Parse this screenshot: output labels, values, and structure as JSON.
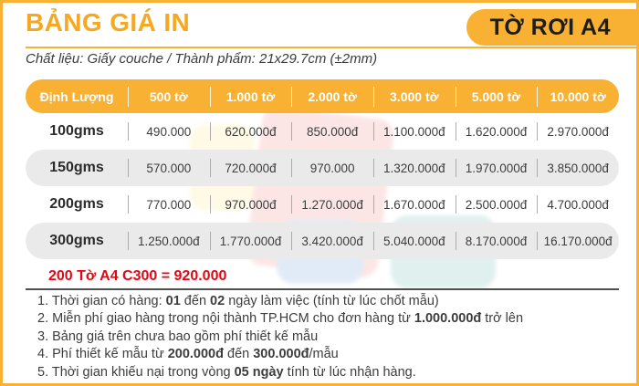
{
  "header": {
    "title": "BẢNG GIÁ IN",
    "badge": "TỜ RƠI A4",
    "subtitle": "Chất liệu: Giấy couche / Thành phẩm: 21x29.7cm (±2mm)"
  },
  "colors": {
    "accent": "#F8B133",
    "title_text": "#F6A821",
    "badge_text": "#1D1D1B",
    "header_text": "#FFFFFF",
    "row_alt": "#EAEAEA",
    "highlight_red": "#E30613"
  },
  "table": {
    "columns": [
      "Định Lượng",
      "500 tờ",
      "1.000 tờ",
      "2.000 tờ",
      "3.000 tờ",
      "5.000 tờ",
      "10.000 tờ"
    ],
    "rows": [
      {
        "label": "100gms",
        "values": [
          "490.000",
          "620.000đ",
          "850.000đ",
          "1.100.000đ",
          "1.620.000đ",
          "2.970.000đ"
        ]
      },
      {
        "label": "150gms",
        "values": [
          "570.000",
          "720.000đ",
          "970.000",
          "1.320.000đ",
          "1.970.000đ",
          "3.850.000đ"
        ]
      },
      {
        "label": "200gms",
        "values": [
          "770.000",
          "970.000đ",
          "1.270.000đ",
          "1.670.000đ",
          "2.500.000đ",
          "4.700.000đ"
        ]
      },
      {
        "label": "300gms",
        "values": [
          "1.250.000đ",
          "1.770.000đ",
          "3.420.000đ",
          "5.040.000đ",
          "8.170.000đ",
          "16.170.000đ"
        ]
      }
    ]
  },
  "highlight": "200 Tờ A4 C300 = 920.000",
  "notes": [
    [
      {
        "t": "1. Thời gian có hàng: "
      },
      {
        "t": "01",
        "b": true
      },
      {
        "t": " đến "
      },
      {
        "t": "02",
        "b": true
      },
      {
        "t": " ngày làm việc (tính từ lúc chốt mẫu)"
      }
    ],
    [
      {
        "t": "2. Miễn phí giao hàng trong nội thành TP.HCM cho đơn hàng từ "
      },
      {
        "t": "1.000.000đ",
        "b": true
      },
      {
        "t": " trở lên"
      }
    ],
    [
      {
        "t": "3. Bảng giá trên chưa bao gồm phí thiết kế mẫu"
      }
    ],
    [
      {
        "t": "4. Phí thiết kế mẫu từ "
      },
      {
        "t": "200.000đ",
        "b": true
      },
      {
        "t": " đến "
      },
      {
        "t": "300.000đ",
        "b": true
      },
      {
        "t": "/mẫu"
      }
    ],
    [
      {
        "t": "5. Thời gian khiếu nại trong vòng "
      },
      {
        "t": "05 ngày",
        "b": true
      },
      {
        "t": " tính từ lúc nhận hàng."
      }
    ]
  ]
}
